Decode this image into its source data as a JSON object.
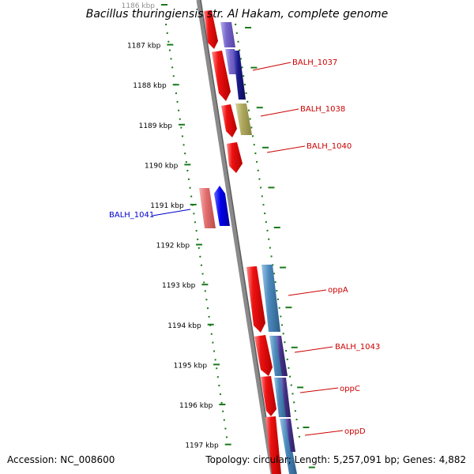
{
  "title": "Bacillus thuringiensis str. Al Hakam, complete genome",
  "footer": {
    "accession": "Accession: NC_008600",
    "summary": "Topology: circular; Length: 5,257,091 bp; Genes: 4,882"
  },
  "colors": {
    "backbone": "#8a8a8a",
    "ruler_dots": "#1a7a1a",
    "label_red": "#cc0000",
    "label_blue": "#0000cc",
    "cds_red": "#ee1111",
    "cds_blue": "#0000ee",
    "cds_pink": "#e47070",
    "lavender": "#7766cc",
    "navy": "#1a1a88",
    "olive": "#b0aa60",
    "steel": "#4a88bb",
    "purple": "#443388"
  },
  "ticks": [
    {
      "kbp": 1186,
      "label": "1186 kbp"
    },
    {
      "kbp": 1187,
      "label": "1187 kbp"
    },
    {
      "kbp": 1188,
      "label": "1188 kbp"
    },
    {
      "kbp": 1189,
      "label": "1189 kbp"
    },
    {
      "kbp": 1190,
      "label": "1190 kbp"
    },
    {
      "kbp": 1191,
      "label": "1191 kbp"
    },
    {
      "kbp": 1192,
      "label": "1192 kbp"
    },
    {
      "kbp": 1193,
      "label": "1193 kbp"
    },
    {
      "kbp": 1194,
      "label": "1194 kbp"
    },
    {
      "kbp": 1195,
      "label": "1195 kbp"
    },
    {
      "kbp": 1196,
      "label": "1196 kbp"
    },
    {
      "kbp": 1197,
      "label": "1197 kbp"
    }
  ],
  "labels": [
    {
      "text": "BALH_1037",
      "color": "label_red"
    },
    {
      "text": "BALH_1038",
      "color": "label_red"
    },
    {
      "text": "BALH_1040",
      "color": "label_red"
    },
    {
      "text": "BALH_1041",
      "color": "label_blue"
    },
    {
      "text": "oppA",
      "color": "label_red"
    },
    {
      "text": "BALH_1043",
      "color": "label_red"
    },
    {
      "text": "oppC",
      "color": "label_red"
    },
    {
      "text": "oppD",
      "color": "label_red"
    }
  ]
}
